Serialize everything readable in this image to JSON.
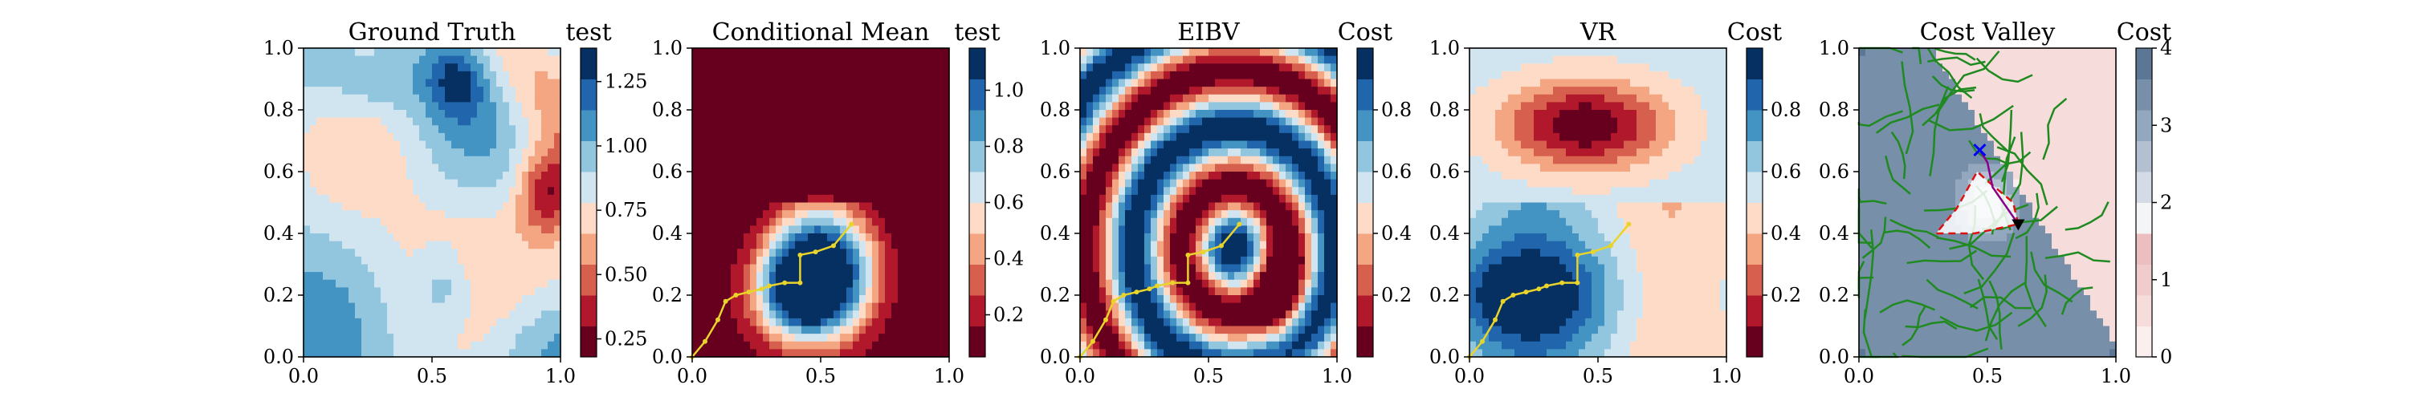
{
  "figure": {
    "background": "#ffffff"
  },
  "chart_data": [
    {
      "type": "heatmap",
      "title": "Ground Truth",
      "colorbar_label": "test",
      "colorbar_ticks": [
        "0.25",
        "0.50",
        "0.75",
        "1.00",
        "1.25"
      ],
      "colorbar_tick_values": [
        0.25,
        0.5,
        0.75,
        1.0,
        1.25
      ],
      "colorbar_range": [
        0.18,
        1.38
      ],
      "colorbar_colors": [
        "#67001f",
        "#b2182b",
        "#d6604d",
        "#f4a582",
        "#fddbc7",
        "#d1e5f0",
        "#92c5de",
        "#4393c3",
        "#2166ac",
        "#053061"
      ],
      "xlim": [
        0,
        1
      ],
      "ylim": [
        0,
        1
      ],
      "xticks": [
        "0.0",
        "0.5",
        "1.0"
      ],
      "xtick_values": [
        0,
        0.5,
        1
      ],
      "yticks": [
        "0.0",
        "0.2",
        "0.4",
        "0.6",
        "0.8",
        "1.0"
      ],
      "ytick_values": [
        0,
        0.2,
        0.4,
        0.6,
        0.8,
        1
      ],
      "field": "gt"
    },
    {
      "type": "heatmap",
      "title": "Conditional Mean",
      "colorbar_label": "test",
      "colorbar_ticks": [
        "0.2",
        "0.4",
        "0.6",
        "0.8",
        "1.0"
      ],
      "colorbar_tick_values": [
        0.2,
        0.4,
        0.6,
        0.8,
        1.0
      ],
      "colorbar_range": [
        0.05,
        1.15
      ],
      "colorbar_colors": [
        "#67001f",
        "#b2182b",
        "#d6604d",
        "#f4a582",
        "#fddbc7",
        "#d1e5f0",
        "#92c5de",
        "#4393c3",
        "#2166ac",
        "#053061"
      ],
      "xlim": [
        0,
        1
      ],
      "ylim": [
        0,
        1
      ],
      "xticks": [
        "0.0",
        "0.5",
        "1.0"
      ],
      "xtick_values": [
        0,
        0.5,
        1
      ],
      "yticks": [
        "0.0",
        "0.2",
        "0.4",
        "0.6",
        "0.8",
        "1.0"
      ],
      "ytick_values": [
        0,
        0.2,
        0.4,
        0.6,
        0.8,
        1
      ],
      "field": "mean",
      "path": [
        [
          0.0,
          0.0
        ],
        [
          0.05,
          0.05
        ],
        [
          0.1,
          0.12
        ],
        [
          0.13,
          0.18
        ],
        [
          0.17,
          0.2
        ],
        [
          0.22,
          0.21
        ],
        [
          0.27,
          0.22
        ],
        [
          0.3,
          0.23
        ],
        [
          0.36,
          0.24
        ],
        [
          0.42,
          0.24
        ],
        [
          0.42,
          0.33
        ],
        [
          0.48,
          0.34
        ],
        [
          0.55,
          0.36
        ],
        [
          0.62,
          0.43
        ]
      ],
      "path_color": "#e8d42b"
    },
    {
      "type": "heatmap",
      "title": "EIBV",
      "colorbar_label": "Cost",
      "colorbar_ticks": [
        "0.2",
        "0.4",
        "0.6",
        "0.8"
      ],
      "colorbar_tick_values": [
        0.2,
        0.4,
        0.6,
        0.8
      ],
      "colorbar_range": [
        0.0,
        1.0
      ],
      "colorbar_colors": [
        "#67001f",
        "#b2182b",
        "#d6604d",
        "#f4a582",
        "#fddbc7",
        "#d1e5f0",
        "#92c5de",
        "#4393c3",
        "#2166ac",
        "#053061"
      ],
      "xlim": [
        0,
        1
      ],
      "ylim": [
        0,
        1
      ],
      "xticks": [
        "0.0",
        "0.5",
        "1.0"
      ],
      "xtick_values": [
        0,
        0.5,
        1
      ],
      "yticks": [
        "0.0",
        "0.2",
        "0.4",
        "0.6",
        "0.8",
        "1.0"
      ],
      "ytick_values": [
        0,
        0.2,
        0.4,
        0.6,
        0.8,
        1
      ],
      "field": "eibv",
      "path": [
        [
          0.0,
          0.0
        ],
        [
          0.05,
          0.05
        ],
        [
          0.1,
          0.12
        ],
        [
          0.13,
          0.18
        ],
        [
          0.17,
          0.2
        ],
        [
          0.22,
          0.21
        ],
        [
          0.27,
          0.22
        ],
        [
          0.3,
          0.23
        ],
        [
          0.36,
          0.24
        ],
        [
          0.42,
          0.24
        ],
        [
          0.42,
          0.33
        ],
        [
          0.48,
          0.34
        ],
        [
          0.55,
          0.36
        ],
        [
          0.62,
          0.43
        ]
      ],
      "path_color": "#e8d42b"
    },
    {
      "type": "heatmap",
      "title": "VR",
      "colorbar_label": "Cost",
      "colorbar_ticks": [
        "0.2",
        "0.4",
        "0.6",
        "0.8"
      ],
      "colorbar_tick_values": [
        0.2,
        0.4,
        0.6,
        0.8
      ],
      "colorbar_range": [
        0.0,
        1.0
      ],
      "colorbar_colors": [
        "#67001f",
        "#b2182b",
        "#d6604d",
        "#f4a582",
        "#fddbc7",
        "#d1e5f0",
        "#92c5de",
        "#4393c3",
        "#2166ac",
        "#053061"
      ],
      "xlim": [
        0,
        1
      ],
      "ylim": [
        0,
        1
      ],
      "xticks": [
        "0.0",
        "0.5",
        "1.0"
      ],
      "xtick_values": [
        0,
        0.5,
        1
      ],
      "yticks": [
        "0.0",
        "0.2",
        "0.4",
        "0.6",
        "0.8",
        "1.0"
      ],
      "ytick_values": [
        0,
        0.2,
        0.4,
        0.6,
        0.8,
        1
      ],
      "field": "vr",
      "path": [
        [
          0.0,
          0.0
        ],
        [
          0.05,
          0.05
        ],
        [
          0.1,
          0.12
        ],
        [
          0.13,
          0.18
        ],
        [
          0.17,
          0.2
        ],
        [
          0.22,
          0.21
        ],
        [
          0.27,
          0.22
        ],
        [
          0.3,
          0.23
        ],
        [
          0.36,
          0.24
        ],
        [
          0.42,
          0.24
        ],
        [
          0.42,
          0.33
        ],
        [
          0.48,
          0.34
        ],
        [
          0.55,
          0.36
        ],
        [
          0.62,
          0.43
        ]
      ],
      "path_color": "#e8d42b"
    },
    {
      "type": "heatmap",
      "title": "Cost Valley",
      "colorbar_label": "Cost",
      "colorbar_ticks": [
        "0",
        "1",
        "2",
        "3",
        "4"
      ],
      "colorbar_tick_values": [
        0,
        1,
        2,
        3,
        4
      ],
      "colorbar_range": [
        0,
        4
      ],
      "colorbar_colors": [
        "#fbeeee",
        "#f7dcdc",
        "#f1cccc",
        "#ebbfbf",
        "#f4f5f7",
        "#d4dbe6",
        "#b3c0d2",
        "#93a7bf",
        "#778fa9",
        "#5b7795"
      ],
      "xlim": [
        0,
        1
      ],
      "ylim": [
        0,
        1
      ],
      "xticks": [
        "0.0",
        "0.5",
        "1.0"
      ],
      "xtick_values": [
        0,
        0.5,
        1
      ],
      "yticks": [
        "0.0",
        "0.2",
        "0.4",
        "0.6",
        "0.8",
        "1.0"
      ],
      "ytick_values": [
        0,
        0.2,
        0.4,
        0.6,
        0.8,
        1
      ],
      "field": "valley",
      "tree_color": "#1f8a1f",
      "route": [
        [
          0.62,
          0.43
        ],
        [
          0.52,
          0.55
        ],
        [
          0.5,
          0.63
        ],
        [
          0.47,
          0.67
        ]
      ],
      "route_color": "#8b008b",
      "budget_polygon": [
        [
          0.62,
          0.43
        ],
        [
          0.6,
          0.5
        ],
        [
          0.5,
          0.57
        ],
        [
          0.46,
          0.6
        ],
        [
          0.38,
          0.48
        ],
        [
          0.3,
          0.4
        ],
        [
          0.45,
          0.4
        ],
        [
          0.62,
          0.43
        ]
      ],
      "budget_color": "#e01010",
      "current_location": [
        0.62,
        0.43
      ],
      "target_location": [
        0.47,
        0.67
      ]
    }
  ]
}
